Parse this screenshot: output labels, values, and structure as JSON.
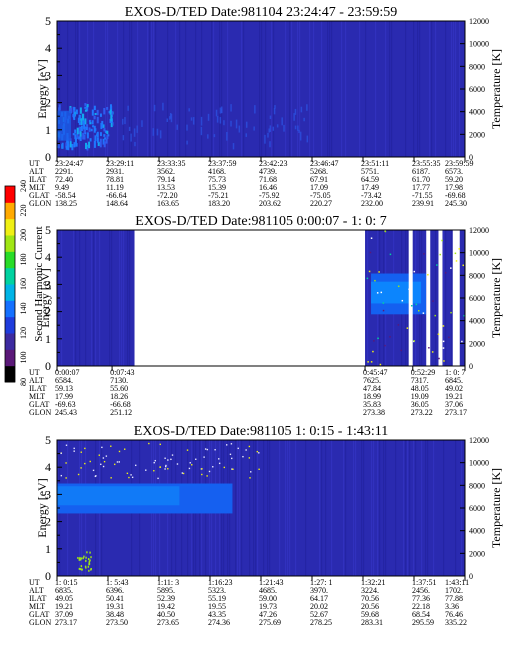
{
  "colors": {
    "background_fill": "#2a2ab0",
    "colorbar": [
      "#000000",
      "#5a1878",
      "#3c2aa0",
      "#1e3cdc",
      "#1470ff",
      "#00b4e6",
      "#00d2a0",
      "#28dc28",
      "#a0e614",
      "#f0f014",
      "#ffaa00",
      "#ff0000"
    ]
  },
  "colorbar": {
    "label": "Second Harmonic Current",
    "ticks": [
      "80",
      "100",
      "120",
      "140",
      "160",
      "180",
      "200",
      "220",
      "240"
    ]
  },
  "ephemeris_labels": [
    "UT",
    "ALT",
    "ILAT",
    "MLT",
    "GLAT",
    "GLON"
  ],
  "chart_data": [
    {
      "type": "heatmap",
      "title": "EXOS-D/TED   Date:981104   23:24:47 - 23:59:59",
      "ylabel": "Energy [eV]",
      "y2label": "Temperature [K]",
      "yticks": [
        "0",
        "1",
        "2",
        "3",
        "4",
        "5"
      ],
      "y2ticks": [
        "0",
        "2000",
        "4000",
        "6000",
        "8000",
        "10000",
        "12000"
      ],
      "ylim": [
        0,
        5
      ],
      "y2lim": [
        0,
        12000
      ],
      "data_coverage": [
        [
          0,
          1
        ]
      ],
      "columns": [
        {
          "UT": "23:24:47",
          "ALT": "2291.",
          "ILAT": "72.40",
          "MLT": "9.49",
          "GLAT": "-58.54",
          "GLON": "138.25"
        },
        {
          "UT": "23:29:11",
          "ALT": "2931.",
          "ILAT": "78.81",
          "MLT": "11.19",
          "GLAT": "-66.64",
          "GLON": "148.64"
        },
        {
          "UT": "23:33:35",
          "ALT": "3562.",
          "ILAT": "79.14",
          "MLT": "13.53",
          "GLAT": "-72.20",
          "GLON": "163.65"
        },
        {
          "UT": "23:37:59",
          "ALT": "4168.",
          "ILAT": "75.73",
          "MLT": "15.39",
          "GLAT": "-75.21",
          "GLON": "183.20"
        },
        {
          "UT": "23:42:23",
          "ALT": "4739.",
          "ILAT": "71.68",
          "MLT": "16.46",
          "GLAT": "-75.92",
          "GLON": "203.62"
        },
        {
          "UT": "23:46:47",
          "ALT": "5268.",
          "ILAT": "67.91",
          "MLT": "17.09",
          "GLAT": "-75.05",
          "GLON": "220.27"
        },
        {
          "UT": "23:51:11",
          "ALT": "5751.",
          "ILAT": "64.59",
          "MLT": "17.49",
          "GLAT": "-73.42",
          "GLON": "232.00"
        },
        {
          "UT": "23:55:35",
          "ALT": "6187.",
          "ILAT": "61.70",
          "MLT": "17.77",
          "GLAT": "-71.55",
          "GLON": "239.91"
        },
        {
          "UT": "23:59:59",
          "ALT": "6573.",
          "ILAT": "59.20",
          "MLT": "17.98",
          "GLAT": "-69.68",
          "GLON": "245.30"
        }
      ]
    },
    {
      "type": "heatmap",
      "title": "EXOS-D/TED   Date:981105   0:00:07 - 1: 0: 7",
      "ylabel": "Energy [eV]",
      "y2label": "Temperature [K]",
      "yticks": [
        "0",
        "1",
        "2",
        "3",
        "4",
        "5"
      ],
      "y2ticks": [
        "0",
        "2000",
        "4000",
        "6000",
        "8000",
        "10000",
        "12000"
      ],
      "ylim": [
        0,
        5
      ],
      "y2lim": [
        0,
        12000
      ],
      "data_coverage": [
        [
          0,
          0.19
        ],
        [
          0.755,
          1
        ]
      ],
      "columns": [
        {
          "UT": "0:00:07",
          "ALT": "6584.",
          "ILAT": "59.13",
          "MLT": "17.99",
          "GLAT": "-69.63",
          "GLON": "245.43"
        },
        {
          "UT": "0:07:43",
          "ALT": "7130.",
          "ILAT": "55.60",
          "MLT": "18.26",
          "GLAT": "-66.68",
          "GLON": "251.12"
        },
        {
          "UT": "0:45:47",
          "ALT": "7625.",
          "ILAT": "47.84",
          "MLT": "18.99",
          "GLAT": "35.83",
          "GLON": "273.38"
        },
        {
          "UT": "0:52:29",
          "ALT": "7317.",
          "ILAT": "48.05",
          "MLT": "19.09",
          "GLAT": "36.05",
          "GLON": "273.22"
        },
        {
          "UT": "1: 0: 7",
          "ALT": "6845.",
          "ILAT": "49.02",
          "MLT": "19.21",
          "GLAT": "37.06",
          "GLON": "273.17"
        }
      ]
    },
    {
      "type": "heatmap",
      "title": "EXOS-D/TED   Date:981105   1: 0:15 - 1:43:11",
      "ylabel": "Energy [eV]",
      "y2label": "Temperature [K]",
      "yticks": [
        "0",
        "1",
        "2",
        "3",
        "4",
        "5"
      ],
      "y2ticks": [
        "0",
        "2000",
        "4000",
        "6000",
        "8000",
        "10000",
        "12000"
      ],
      "ylim": [
        0,
        5
      ],
      "y2lim": [
        0,
        12000
      ],
      "data_coverage": [
        [
          0,
          1
        ]
      ],
      "columns": [
        {
          "UT": "1: 0:15",
          "ALT": "6835.",
          "ILAT": "49.05",
          "MLT": "19.21",
          "GLAT": "37.09",
          "GLON": "273.17"
        },
        {
          "UT": "1: 5:43",
          "ALT": "6396.",
          "ILAT": "50.41",
          "MLT": "19.31",
          "GLAT": "38.48",
          "GLON": "273.50"
        },
        {
          "UT": "1:11: 3",
          "ALT": "5895.",
          "ILAT": "52.39",
          "MLT": "19.42",
          "GLAT": "40.50",
          "GLON": "273.65"
        },
        {
          "UT": "1:16:23",
          "ALT": "5323.",
          "ILAT": "55.19",
          "MLT": "19.55",
          "GLAT": "43.35",
          "GLON": "274.36"
        },
        {
          "UT": "1:21:43",
          "ALT": "4685.",
          "ILAT": "59.00",
          "MLT": "19.73",
          "GLAT": "47.26",
          "GLON": "275.69"
        },
        {
          "UT": "1:27: 1",
          "ALT": "3970.",
          "ILAT": "64.17",
          "MLT": "20.02",
          "GLAT": "52.67",
          "GLON": "278.25"
        },
        {
          "UT": "1:32:21",
          "ALT": "3224.",
          "ILAT": "70.56",
          "MLT": "20.56",
          "GLAT": "59.68",
          "GLON": "283.31"
        },
        {
          "UT": "1:37:51",
          "ALT": "2456.",
          "ILAT": "77.36",
          "MLT": "22.18",
          "GLAT": "68.54",
          "GLON": "295.59"
        },
        {
          "UT": "1:43:11",
          "ALT": "1702.",
          "ILAT": "77.88",
          "MLT": "3.36",
          "GLAT": "76.46",
          "GLON": "335.22"
        }
      ]
    }
  ]
}
